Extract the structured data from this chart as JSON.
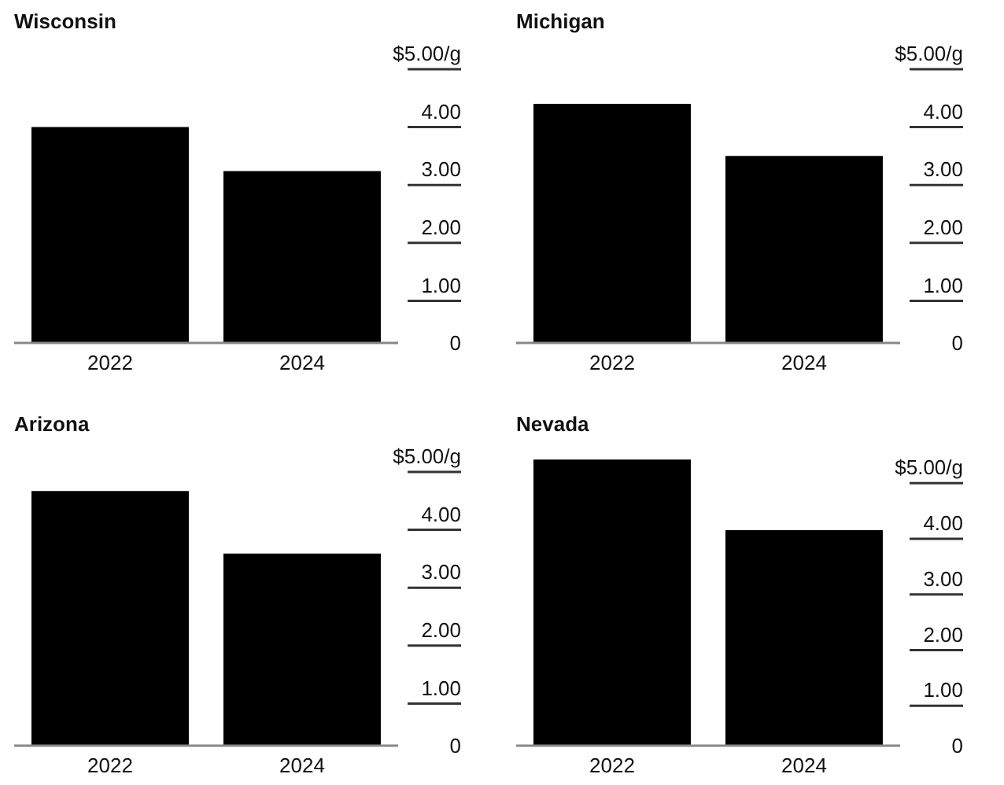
{
  "chart_data": [
    {
      "type": "bar",
      "title": "Wisconsin",
      "categories": [
        "2022",
        "2024"
      ],
      "values": [
        3.73,
        2.97
      ],
      "color": "#000000",
      "ylim": [
        0,
        5
      ],
      "yticks": [
        {
          "value": 0,
          "label": "0"
        },
        {
          "value": 1,
          "label": "1.00"
        },
        {
          "value": 2,
          "label": "2.00"
        },
        {
          "value": 3,
          "label": "3.00"
        },
        {
          "value": 4,
          "label": "4.00"
        },
        {
          "value": 5,
          "label": "$5.00/g"
        }
      ],
      "grid": false
    },
    {
      "type": "bar",
      "title": "Michigan",
      "categories": [
        "2022",
        "2024"
      ],
      "values": [
        4.13,
        3.23
      ],
      "color": "#000000",
      "ylim": [
        0,
        5
      ],
      "yticks": [
        {
          "value": 0,
          "label": "0"
        },
        {
          "value": 1,
          "label": "1.00"
        },
        {
          "value": 2,
          "label": "2.00"
        },
        {
          "value": 3,
          "label": "3.00"
        },
        {
          "value": 4,
          "label": "4.00"
        },
        {
          "value": 5,
          "label": "$5.00/g"
        }
      ],
      "grid": false
    },
    {
      "type": "bar",
      "title": "Arizona",
      "categories": [
        "2022",
        "2024"
      ],
      "values": [
        4.4,
        3.32
      ],
      "color": "#000000",
      "ylim": [
        0,
        5
      ],
      "yticks": [
        {
          "value": 0,
          "label": "0"
        },
        {
          "value": 1,
          "label": "1.00"
        },
        {
          "value": 2,
          "label": "2.00"
        },
        {
          "value": 3,
          "label": "3.00"
        },
        {
          "value": 4,
          "label": "4.00"
        },
        {
          "value": 5,
          "label": "$5.00/g"
        }
      ],
      "grid": false
    },
    {
      "type": "bar",
      "title": "Nevada",
      "categories": [
        "2022",
        "2024"
      ],
      "values": [
        5.14,
        3.87
      ],
      "color": "#000000",
      "ylim": [
        0,
        5.2
      ],
      "yticks": [
        {
          "value": 0,
          "label": "0"
        },
        {
          "value": 1,
          "label": "1.00"
        },
        {
          "value": 2,
          "label": "2.00"
        },
        {
          "value": 3,
          "label": "3.00"
        },
        {
          "value": 4,
          "label": "4.00"
        },
        {
          "value": 5,
          "label": "$5.00/g"
        }
      ],
      "grid": false
    }
  ]
}
